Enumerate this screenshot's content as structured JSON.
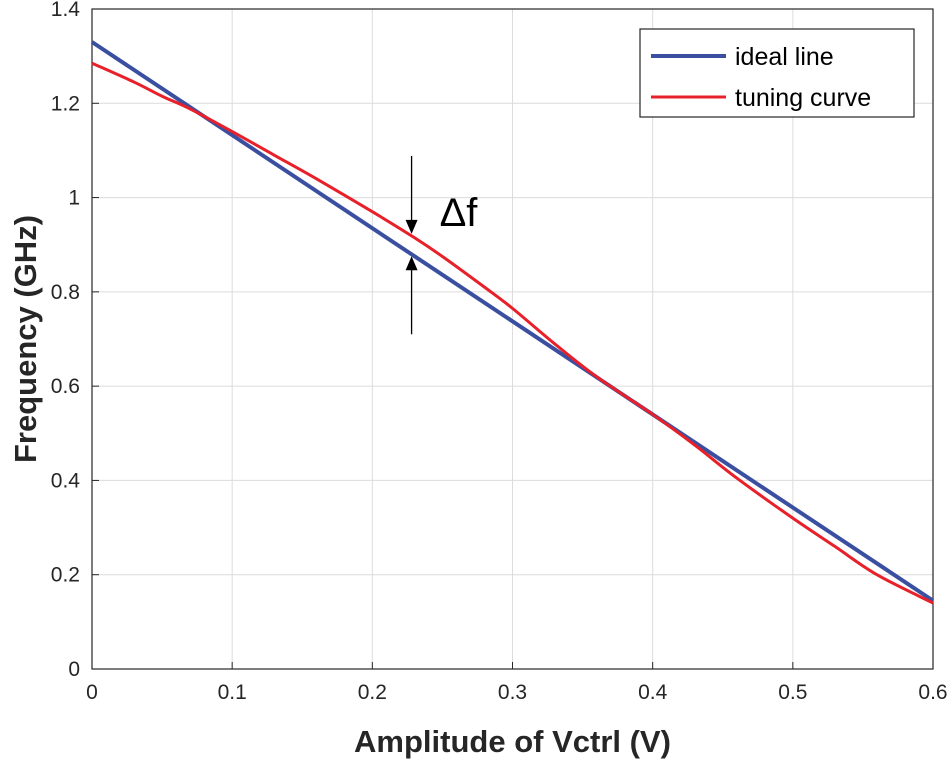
{
  "chart_data": {
    "type": "line",
    "title": "",
    "xlabel": "Amplitude of Vctrl (V)",
    "ylabel": "Frequency (GHz)",
    "xlim": [
      0,
      0.6
    ],
    "ylim": [
      0,
      1.4
    ],
    "xticks": [
      0,
      0.1,
      0.2,
      0.3,
      0.4,
      0.5,
      0.6
    ],
    "xtick_labels": [
      "0",
      "0.1",
      "0.2",
      "0.3",
      "0.4",
      "0.5",
      "0.6"
    ],
    "yticks": [
      0,
      0.2,
      0.4,
      0.6,
      0.8,
      1.0,
      1.2,
      1.4
    ],
    "ytick_labels": [
      "0",
      "0.2",
      "0.4",
      "0.6",
      "0.8",
      "1",
      "1.2",
      "1.4"
    ],
    "grid": true,
    "legend_position": "top-right",
    "series": [
      {
        "name": "ideal line",
        "color": "#3b4fa0",
        "x": [
          0,
          0.6
        ],
        "y": [
          1.33,
          0.145
        ]
      },
      {
        "name": "tuning curve",
        "color": "#e8202a",
        "x": [
          0,
          0.03,
          0.05,
          0.07,
          0.1,
          0.13,
          0.16,
          0.2,
          0.23,
          0.25,
          0.28,
          0.3,
          0.33,
          0.36,
          0.4,
          0.43,
          0.46,
          0.5,
          0.53,
          0.56,
          0.6
        ],
        "y": [
          1.285,
          1.245,
          1.215,
          1.188,
          1.14,
          1.09,
          1.04,
          0.97,
          0.915,
          0.875,
          0.81,
          0.765,
          0.69,
          0.62,
          0.54,
          0.475,
          0.405,
          0.32,
          0.26,
          0.2,
          0.14
        ]
      }
    ],
    "annotations": [
      {
        "text": "Δf",
        "x": 0.228
      }
    ]
  }
}
